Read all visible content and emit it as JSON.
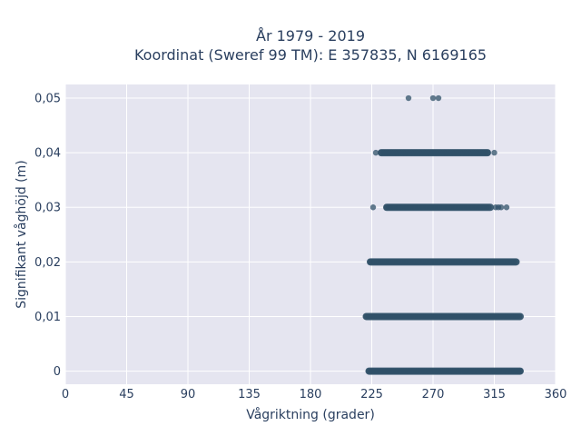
{
  "chart_data": {
    "type": "scatter",
    "title_line1": "År 1979 - 2019",
    "title_line2": "Koordinat (Sweref 99 TM): E 357835, N 6169165",
    "xlabel": "Vågriktning (grader)",
    "ylabel": "Signifikant våghöjd (m)",
    "xlim": [
      0,
      360
    ],
    "ylim": [
      -0.0024,
      0.0525
    ],
    "x_ticks": [
      0,
      45,
      90,
      135,
      180,
      225,
      270,
      315,
      360
    ],
    "x_tick_labels": [
      "0",
      "45",
      "90",
      "135",
      "180",
      "225",
      "270",
      "315",
      "360"
    ],
    "y_ticks": [
      0,
      0.01,
      0.02,
      0.03,
      0.04,
      0.05
    ],
    "y_tick_labels": [
      "0",
      "0,01",
      "0,02",
      "0,03",
      "0,04",
      "0,05"
    ],
    "grid": true,
    "marker_color": "#2f5068",
    "plot_background": "#e5e5f0",
    "bands": [
      {
        "y": 0.0,
        "x_min": 223,
        "x_max": 334
      },
      {
        "y": 0.01,
        "x_min": 221,
        "x_max": 334
      },
      {
        "y": 0.02,
        "x_min": 224,
        "x_max": 331
      },
      {
        "y": 0.03,
        "x_min": 236,
        "x_max": 312
      },
      {
        "y": 0.04,
        "x_min": 232,
        "x_max": 310
      }
    ],
    "points": [
      {
        "x": 226,
        "y": 0.03
      },
      {
        "x": 228,
        "y": 0.04
      },
      {
        "x": 315,
        "y": 0.04
      },
      {
        "x": 316,
        "y": 0.03
      },
      {
        "x": 318,
        "y": 0.03
      },
      {
        "x": 320,
        "y": 0.03
      },
      {
        "x": 324,
        "y": 0.03
      },
      {
        "x": 252,
        "y": 0.05
      },
      {
        "x": 270,
        "y": 0.05
      },
      {
        "x": 274,
        "y": 0.05
      }
    ]
  }
}
